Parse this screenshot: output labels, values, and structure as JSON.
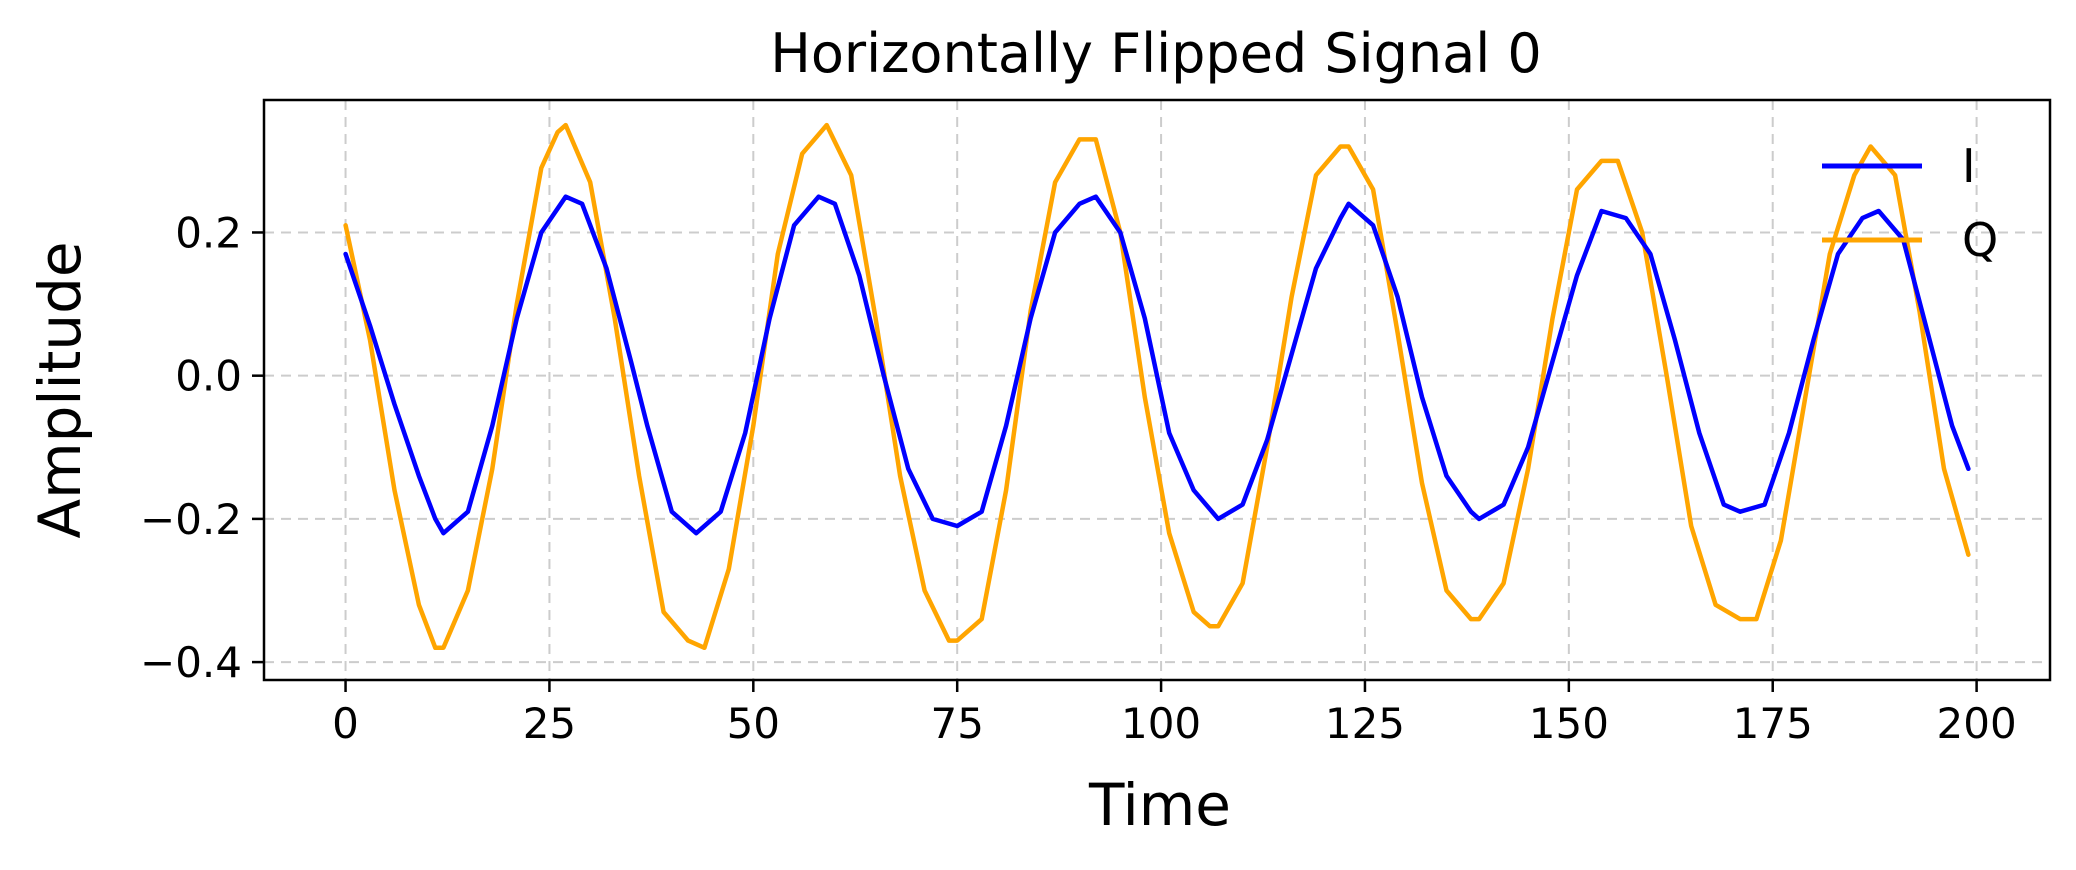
{
  "chart_data": {
    "type": "line",
    "title": "Horizontally Flipped Signal 0",
    "xlabel": "Time",
    "ylabel": "Amplitude",
    "xlim": [
      -10,
      209
    ],
    "ylim": [
      -0.425,
      0.385
    ],
    "xticks": [
      0,
      25,
      50,
      75,
      100,
      125,
      150,
      175,
      200
    ],
    "xtick_labels": [
      "0",
      "25",
      "50",
      "75",
      "100",
      "125",
      "150",
      "175",
      "200"
    ],
    "yticks": [
      -0.4,
      -0.2,
      0.0,
      0.2
    ],
    "ytick_labels": [
      "−0.4",
      "−0.2",
      "0.0",
      "0.2"
    ],
    "grid": true,
    "legend_position": "top-right",
    "series": [
      {
        "name": "I",
        "color": "#0000ff",
        "sample_x": [
          0,
          3,
          6,
          9,
          11,
          12,
          15,
          18,
          21,
          24,
          27,
          29,
          32,
          35,
          37,
          40,
          43,
          46,
          49,
          52,
          55,
          58,
          60,
          63,
          66,
          69,
          72,
          75,
          78,
          81,
          84,
          87,
          90,
          92,
          95,
          98,
          101,
          104,
          107,
          110,
          113,
          116,
          119,
          122,
          123,
          126,
          129,
          132,
          135,
          138,
          139,
          142,
          145,
          148,
          151,
          154,
          157,
          160,
          163,
          166,
          169,
          171,
          174,
          177,
          180,
          183,
          186,
          188,
          191,
          194,
          197,
          199
        ],
        "sample_y": [
          0.17,
          0.07,
          -0.04,
          -0.14,
          -0.2,
          -0.22,
          -0.19,
          -0.07,
          0.08,
          0.2,
          0.25,
          0.24,
          0.15,
          0.02,
          -0.07,
          -0.19,
          -0.22,
          -0.19,
          -0.08,
          0.08,
          0.21,
          0.25,
          0.24,
          0.14,
          0.0,
          -0.13,
          -0.2,
          -0.21,
          -0.19,
          -0.07,
          0.08,
          0.2,
          0.24,
          0.25,
          0.2,
          0.08,
          -0.08,
          -0.16,
          -0.2,
          -0.18,
          -0.09,
          0.03,
          0.15,
          0.22,
          0.24,
          0.21,
          0.11,
          -0.03,
          -0.14,
          -0.19,
          -0.2,
          -0.18,
          -0.1,
          0.02,
          0.14,
          0.23,
          0.22,
          0.17,
          0.05,
          -0.08,
          -0.18,
          -0.19,
          -0.18,
          -0.08,
          0.05,
          0.17,
          0.22,
          0.23,
          0.19,
          0.06,
          -0.07,
          -0.13
        ]
      },
      {
        "name": "Q",
        "color": "#ffa500",
        "sample_x": [
          0,
          3,
          6,
          9,
          11,
          12,
          15,
          18,
          21,
          24,
          26,
          27,
          30,
          33,
          36,
          39,
          42,
          44,
          47,
          50,
          53,
          56,
          59,
          62,
          65,
          68,
          71,
          74,
          75,
          78,
          81,
          84,
          87,
          90,
          92,
          95,
          98,
          101,
          104,
          106,
          107,
          110,
          113,
          116,
          119,
          122,
          123,
          126,
          129,
          132,
          135,
          138,
          139,
          142,
          145,
          148,
          151,
          154,
          156,
          159,
          162,
          165,
          168,
          171,
          173,
          176,
          179,
          182,
          185,
          187,
          190,
          193,
          196,
          199
        ],
        "sample_y": [
          0.21,
          0.05,
          -0.16,
          -0.32,
          -0.38,
          -0.38,
          -0.3,
          -0.13,
          0.1,
          0.29,
          0.34,
          0.35,
          0.27,
          0.08,
          -0.14,
          -0.33,
          -0.37,
          -0.38,
          -0.27,
          -0.07,
          0.17,
          0.31,
          0.35,
          0.28,
          0.08,
          -0.14,
          -0.3,
          -0.37,
          -0.37,
          -0.34,
          -0.16,
          0.09,
          0.27,
          0.33,
          0.33,
          0.2,
          -0.03,
          -0.22,
          -0.33,
          -0.35,
          -0.35,
          -0.29,
          -0.1,
          0.11,
          0.28,
          0.32,
          0.32,
          0.26,
          0.06,
          -0.15,
          -0.3,
          -0.34,
          -0.34,
          -0.29,
          -0.13,
          0.08,
          0.26,
          0.3,
          0.3,
          0.2,
          0.0,
          -0.21,
          -0.32,
          -0.34,
          -0.34,
          -0.23,
          -0.03,
          0.17,
          0.28,
          0.32,
          0.28,
          0.09,
          -0.13,
          -0.25
        ]
      }
    ]
  }
}
